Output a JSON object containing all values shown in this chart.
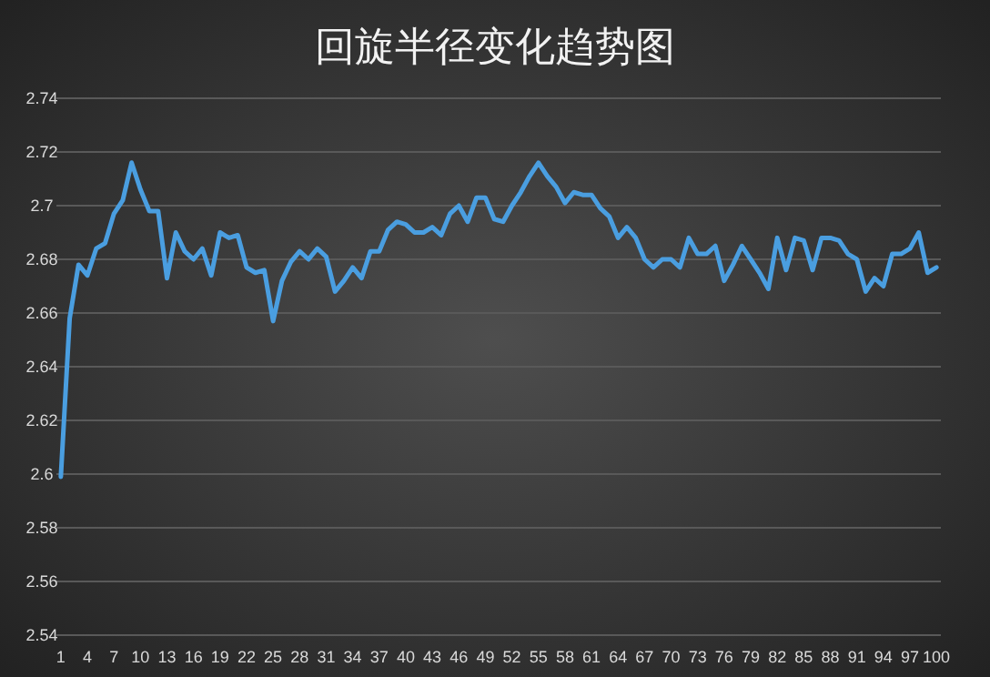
{
  "chart_data": {
    "type": "line",
    "title": "回旋半径变化趋势图",
    "categories": [
      "1",
      null,
      null,
      "4",
      null,
      null,
      "7",
      null,
      null,
      "10",
      null,
      null,
      "13",
      null,
      null,
      "16",
      null,
      null,
      "19",
      null,
      null,
      "22",
      null,
      null,
      "25",
      null,
      null,
      "28",
      null,
      null,
      "31",
      null,
      null,
      "34",
      null,
      null,
      "37",
      null,
      null,
      "40",
      null,
      null,
      "43",
      null,
      null,
      "46",
      null,
      null,
      "49",
      null,
      null,
      "52",
      null,
      null,
      "55",
      null,
      null,
      "58",
      null,
      null,
      "61",
      null,
      null,
      "64",
      null,
      null,
      "67",
      null,
      null,
      "70",
      null,
      null,
      "73",
      null,
      null,
      "76",
      null,
      null,
      "79",
      null,
      null,
      "82",
      null,
      null,
      "85",
      null,
      null,
      "88",
      null,
      null,
      "91",
      null,
      null,
      "94",
      null,
      null,
      "97",
      null,
      null,
      "100"
    ],
    "series": [
      {
        "color": "#4a9ee0",
        "values": [
          2.599,
          2.658,
          2.678,
          2.674,
          2.684,
          2.686,
          2.697,
          2.702,
          2.716,
          2.706,
          2.698,
          2.698,
          2.673,
          2.69,
          2.683,
          2.68,
          2.684,
          2.674,
          2.69,
          2.688,
          2.689,
          2.677,
          2.675,
          2.676,
          2.657,
          2.672,
          2.679,
          2.683,
          2.68,
          2.684,
          2.681,
          2.668,
          2.672,
          2.677,
          2.673,
          2.683,
          2.683,
          2.691,
          2.694,
          2.693,
          2.69,
          2.69,
          2.692,
          2.689,
          2.697,
          2.7,
          2.694,
          2.703,
          2.703,
          2.695,
          2.694,
          2.7,
          2.705,
          2.711,
          2.716,
          2.711,
          2.707,
          2.701,
          2.705,
          2.704,
          2.704,
          2.699,
          2.696,
          2.688,
          2.692,
          2.688,
          2.68,
          2.677,
          2.68,
          2.68,
          2.677,
          2.688,
          2.682,
          2.682,
          2.685,
          2.672,
          2.678,
          2.685,
          2.68,
          2.675,
          2.669,
          2.688,
          2.676,
          2.688,
          2.687,
          2.676,
          2.688,
          2.688,
          2.687,
          2.682,
          2.68,
          2.668,
          2.673,
          2.67,
          2.682,
          2.682,
          2.684,
          2.69,
          2.675,
          2.677
        ]
      }
    ],
    "ylim": [
      2.54,
      2.74
    ],
    "yticks": [
      2.54,
      2.56,
      2.58,
      2.6,
      2.62,
      2.64,
      2.66,
      2.68,
      2.7,
      2.72,
      2.74
    ],
    "grid": "y"
  }
}
